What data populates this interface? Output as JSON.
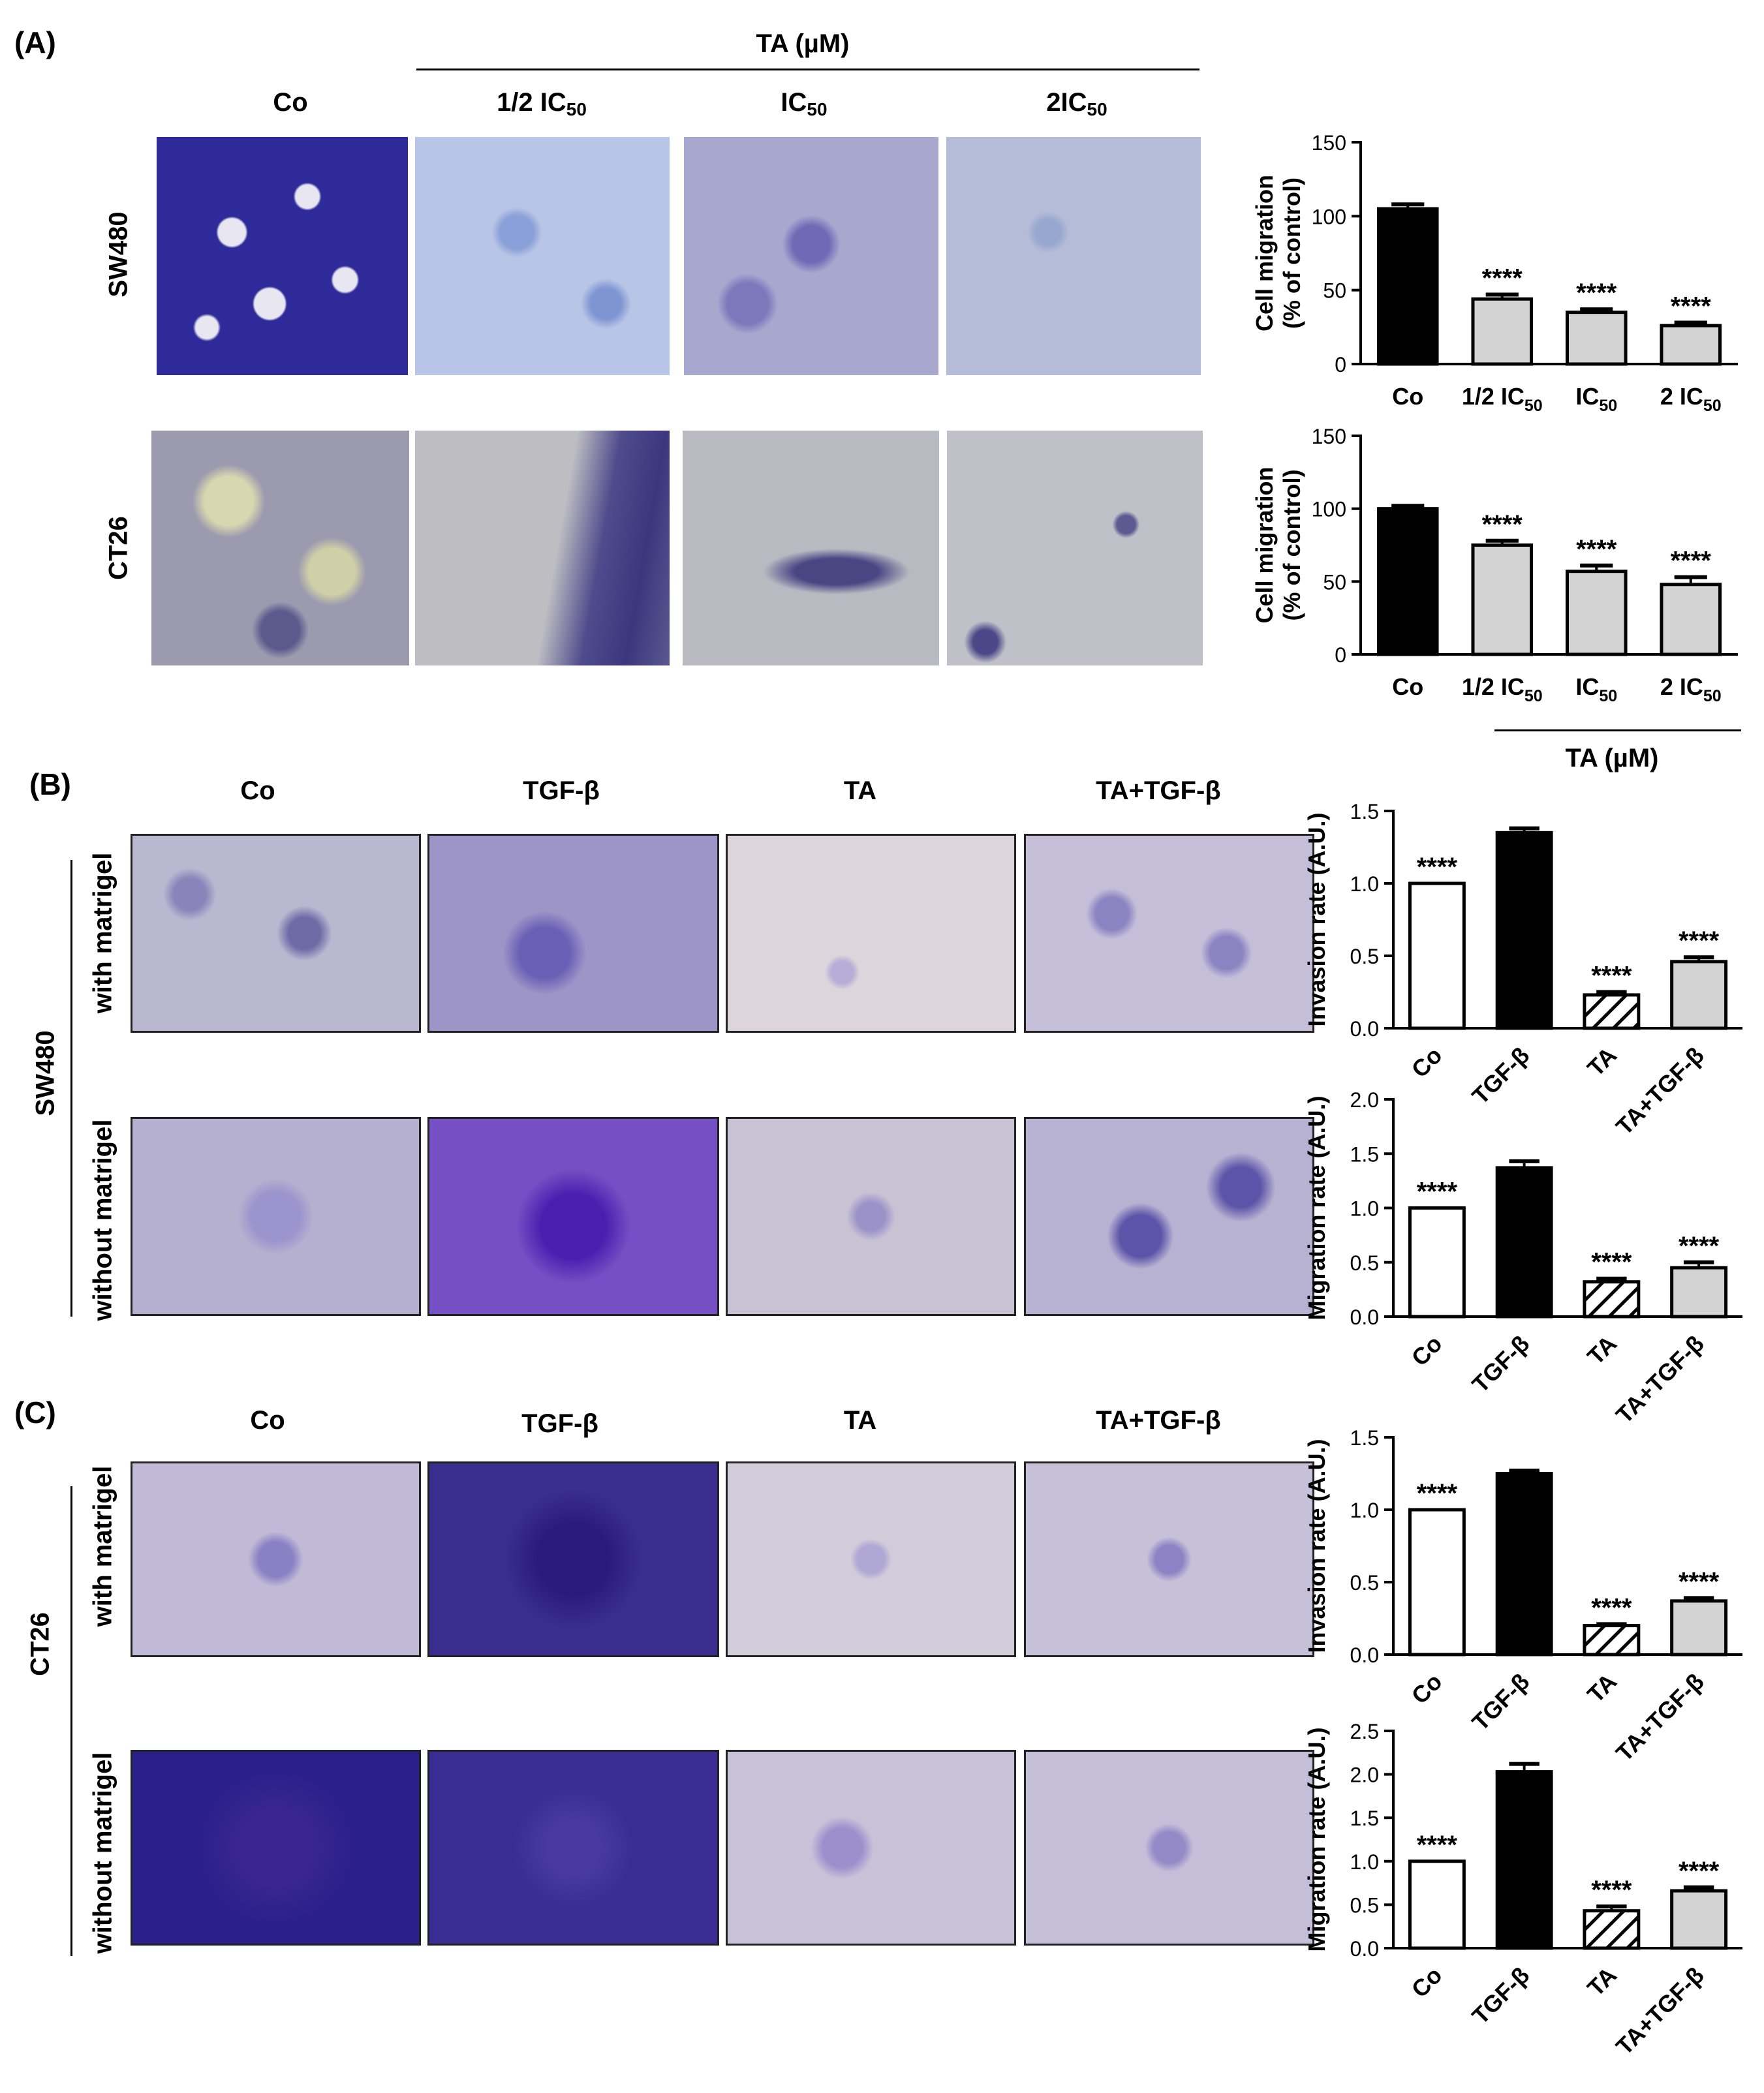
{
  "panels": {
    "A": {
      "letter": "(A)",
      "treatment_header": "TA (µM)",
      "columns": [
        {
          "main": "Co",
          "sub": ""
        },
        {
          "main": "1/2 IC",
          "sub": "50"
        },
        {
          "main": "IC",
          "sub": "50"
        },
        {
          "main": "2IC",
          "sub": "50"
        }
      ],
      "rows": [
        "SW480",
        "CT26"
      ],
      "chart_footer": "TA (µM)"
    },
    "B": {
      "letter": "(B)",
      "columns": [
        "Co",
        "TGF-β",
        "TA",
        "TA+TGF-β"
      ],
      "cell_line": "SW480",
      "rows": [
        "with matrigel",
        "without matrigel"
      ]
    },
    "C": {
      "letter": "(C)",
      "columns": [
        "Co",
        "TGF-β",
        "TA",
        "TA+TGF-β"
      ],
      "cell_line": "CT26",
      "rows": [
        "with matrigel",
        "without matrigel"
      ]
    }
  },
  "micrograph_colors": {
    "deep_purple": "#2b1f8c",
    "light_lilac": "#c4bed8",
    "pale_field": "#b8b4c4",
    "blue_field": "#a9b6da"
  },
  "chart_data": [
    {
      "type": "bar",
      "panel": "A",
      "cell_line": "SW480",
      "ylabel": "Cell migration",
      "ylabel2": "(% of control)",
      "categories": [
        {
          "main": "Co",
          "sub": ""
        },
        {
          "main": "1/2 IC",
          "sub": "50"
        },
        {
          "main": "IC",
          "sub": "50"
        },
        {
          "main": "2 IC",
          "sub": "50"
        }
      ],
      "values": [
        105,
        44,
        35,
        26
      ],
      "errors": [
        3,
        3,
        2,
        2
      ],
      "significance": [
        "",
        "****",
        "****",
        "****"
      ],
      "fills": [
        "#000000",
        "#d3d3d3",
        "#d3d3d3",
        "#d3d3d3"
      ],
      "ylim": [
        0,
        150
      ],
      "yticks": [
        0,
        50,
        100,
        150
      ],
      "rotate_categories": false
    },
    {
      "type": "bar",
      "panel": "A",
      "cell_line": "CT26",
      "ylabel": "Cell migration",
      "ylabel2": "(% of control)",
      "categories": [
        {
          "main": "Co",
          "sub": ""
        },
        {
          "main": "1/2 IC",
          "sub": "50"
        },
        {
          "main": "IC",
          "sub": "50"
        },
        {
          "main": "2 IC",
          "sub": "50"
        }
      ],
      "values": [
        100,
        75,
        57,
        48
      ],
      "errors": [
        2,
        3,
        4,
        5
      ],
      "significance": [
        "",
        "****",
        "****",
        "****"
      ],
      "fills": [
        "#000000",
        "#d3d3d3",
        "#d3d3d3",
        "#d3d3d3"
      ],
      "ylim": [
        0,
        150
      ],
      "yticks": [
        0,
        50,
        100,
        150
      ],
      "rotate_categories": false
    },
    {
      "type": "bar",
      "panel": "B",
      "cell_line": "SW480",
      "ylabel": "Invasion rate (A.U.)",
      "categories": [
        {
          "main": "Co",
          "sub": ""
        },
        {
          "main": "TGF-β",
          "sub": ""
        },
        {
          "main": "TA",
          "sub": ""
        },
        {
          "main": "TA+TGF-β",
          "sub": ""
        }
      ],
      "values": [
        1.0,
        1.35,
        0.23,
        0.46
      ],
      "errors": [
        0,
        0.03,
        0.02,
        0.03
      ],
      "significance": [
        "****",
        "",
        "****",
        "****"
      ],
      "fills": [
        "#ffffff",
        "#000000",
        "hatch",
        "#d3d3d3"
      ],
      "ylim": [
        0,
        1.5
      ],
      "yticks": [
        0.0,
        0.5,
        1.0,
        1.5
      ],
      "rotate_categories": true
    },
    {
      "type": "bar",
      "panel": "B",
      "cell_line": "SW480",
      "ylabel": "Migration rate (A.U.)",
      "categories": [
        {
          "main": "Co",
          "sub": ""
        },
        {
          "main": "TGF-β",
          "sub": ""
        },
        {
          "main": "TA",
          "sub": ""
        },
        {
          "main": "TA+TGF-β",
          "sub": ""
        }
      ],
      "values": [
        1.0,
        1.37,
        0.32,
        0.45
      ],
      "errors": [
        0,
        0.06,
        0.03,
        0.05
      ],
      "significance": [
        "****",
        "",
        "****",
        "****"
      ],
      "fills": [
        "#ffffff",
        "#000000",
        "hatch",
        "#d3d3d3"
      ],
      "ylim": [
        0,
        2.0
      ],
      "yticks": [
        0.0,
        0.5,
        1.0,
        1.5,
        2.0
      ],
      "rotate_categories": true
    },
    {
      "type": "bar",
      "panel": "C",
      "cell_line": "CT26",
      "ylabel": "Invasion rate (A.U.)",
      "categories": [
        {
          "main": "Co",
          "sub": ""
        },
        {
          "main": "TGF-β",
          "sub": ""
        },
        {
          "main": "TA",
          "sub": ""
        },
        {
          "main": "TA+TGF-β",
          "sub": ""
        }
      ],
      "values": [
        1.0,
        1.25,
        0.2,
        0.37
      ],
      "errors": [
        0,
        0.02,
        0.01,
        0.02
      ],
      "significance": [
        "****",
        "",
        "****",
        "****"
      ],
      "fills": [
        "#ffffff",
        "#000000",
        "hatch",
        "#d3d3d3"
      ],
      "ylim": [
        0,
        1.5
      ],
      "yticks": [
        0.0,
        0.5,
        1.0,
        1.5
      ],
      "rotate_categories": true
    },
    {
      "type": "bar",
      "panel": "C",
      "cell_line": "CT26",
      "ylabel": "Migration rate (A.U.)",
      "categories": [
        {
          "main": "Co",
          "sub": ""
        },
        {
          "main": "TGF-β",
          "sub": ""
        },
        {
          "main": "TA",
          "sub": ""
        },
        {
          "main": "TA+TGF-β",
          "sub": ""
        }
      ],
      "values": [
        1.0,
        2.03,
        0.43,
        0.66
      ],
      "errors": [
        0,
        0.09,
        0.05,
        0.04
      ],
      "significance": [
        "****",
        "",
        "****",
        "****"
      ],
      "fills": [
        "#ffffff",
        "#000000",
        "hatch",
        "#d3d3d3"
      ],
      "ylim": [
        0,
        2.5
      ],
      "yticks": [
        0.0,
        0.5,
        1.0,
        1.5,
        2.0,
        2.5
      ],
      "rotate_categories": true
    }
  ]
}
